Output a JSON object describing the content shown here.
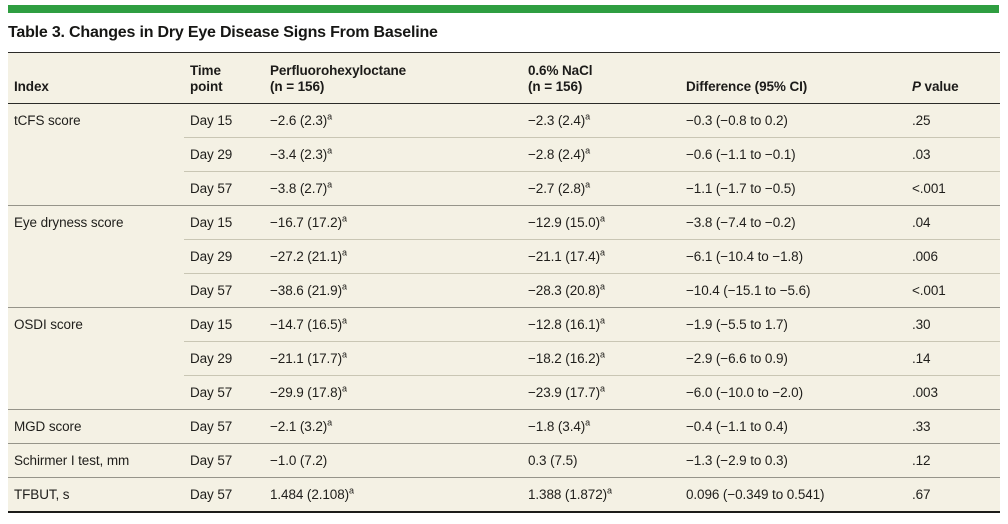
{
  "title": "Table 3. Changes in Dry Eye Disease Signs From Baseline",
  "colors": {
    "accent": "#2f9e41",
    "table_background": "#f4f1e4"
  },
  "table": {
    "columns": [
      {
        "name": "col-header-index",
        "lines": [
          "Index"
        ]
      },
      {
        "name": "col-header-time-point",
        "lines": [
          "Time",
          "point"
        ]
      },
      {
        "name": "col-header-perfluorohexyloctane",
        "lines": [
          "Perfluorohexyloctane",
          "(n = 156)"
        ]
      },
      {
        "name": "col-header-nacl",
        "lines": [
          "0.6% NaCl",
          "(n = 156)"
        ]
      },
      {
        "name": "col-header-difference",
        "lines": [
          "Difference (95% CI)"
        ]
      },
      {
        "name": "col-header-p-value",
        "lines": [
          "P value"
        ],
        "italic_first_char": true
      }
    ],
    "groups": [
      {
        "index": "tCFS score",
        "rows": [
          {
            "time": "Day 15",
            "drug": "−2.6 (2.3)",
            "drug_sup": "a",
            "nacl": "−2.3 (2.4)",
            "nacl_sup": "a",
            "diff": "−0.3 (−0.8 to 0.2)",
            "p": ".25"
          },
          {
            "time": "Day 29",
            "drug": "−3.4 (2.3)",
            "drug_sup": "a",
            "nacl": "−2.8 (2.4)",
            "nacl_sup": "a",
            "diff": "−0.6 (−1.1 to −0.1)",
            "p": ".03"
          },
          {
            "time": "Day 57",
            "drug": "−3.8 (2.7)",
            "drug_sup": "a",
            "nacl": "−2.7 (2.8)",
            "nacl_sup": "a",
            "diff": "−1.1 (−1.7 to −0.5)",
            "p": "<.001"
          }
        ]
      },
      {
        "index": "Eye dryness score",
        "rows": [
          {
            "time": "Day 15",
            "drug": "−16.7 (17.2)",
            "drug_sup": "a",
            "nacl": "−12.9 (15.0)",
            "nacl_sup": "a",
            "diff": "−3.8 (−7.4 to −0.2)",
            "p": ".04"
          },
          {
            "time": "Day 29",
            "drug": "−27.2 (21.1)",
            "drug_sup": "a",
            "nacl": "−21.1 (17.4)",
            "nacl_sup": "a",
            "diff": "−6.1 (−10.4 to −1.8)",
            "p": ".006"
          },
          {
            "time": "Day 57",
            "drug": "−38.6 (21.9)",
            "drug_sup": "a",
            "nacl": "−28.3 (20.8)",
            "nacl_sup": "a",
            "diff": "−10.4 (−15.1 to −5.6)",
            "p": "<.001"
          }
        ]
      },
      {
        "index": "OSDI score",
        "rows": [
          {
            "time": "Day 15",
            "drug": "−14.7 (16.5)",
            "drug_sup": "a",
            "nacl": "−12.8 (16.1)",
            "nacl_sup": "a",
            "diff": "−1.9 (−5.5 to 1.7)",
            "p": ".30"
          },
          {
            "time": "Day 29",
            "drug": "−21.1 (17.7)",
            "drug_sup": "a",
            "nacl": "−18.2 (16.2)",
            "nacl_sup": "a",
            "diff": "−2.9 (−6.6 to 0.9)",
            "p": ".14"
          },
          {
            "time": "Day 57",
            "drug": "−29.9 (17.8)",
            "drug_sup": "a",
            "nacl": "−23.9 (17.7)",
            "nacl_sup": "a",
            "diff": "−6.0 (−10.0 to −2.0)",
            "p": ".003"
          }
        ]
      },
      {
        "index": "MGD score",
        "rows": [
          {
            "time": "Day 57",
            "drug": "−2.1 (3.2)",
            "drug_sup": "a",
            "nacl": "−1.8 (3.4)",
            "nacl_sup": "a",
            "diff": "−0.4 (−1.1 to 0.4)",
            "p": ".33"
          }
        ]
      },
      {
        "index": "Schirmer I test, mm",
        "rows": [
          {
            "time": "Day 57",
            "drug": "−1.0 (7.2)",
            "nacl": "0.3 (7.5)",
            "diff": "−1.3 (−2.9 to 0.3)",
            "p": ".12"
          }
        ]
      },
      {
        "index": "TFBUT, s",
        "rows": [
          {
            "time": "Day 57",
            "drug": "1.484 (2.108)",
            "drug_sup": "a",
            "nacl": "1.388 (1.872)",
            "nacl_sup": "a",
            "diff": "0.096 (−0.349 to 0.541)",
            "p": ".67"
          }
        ]
      }
    ]
  }
}
